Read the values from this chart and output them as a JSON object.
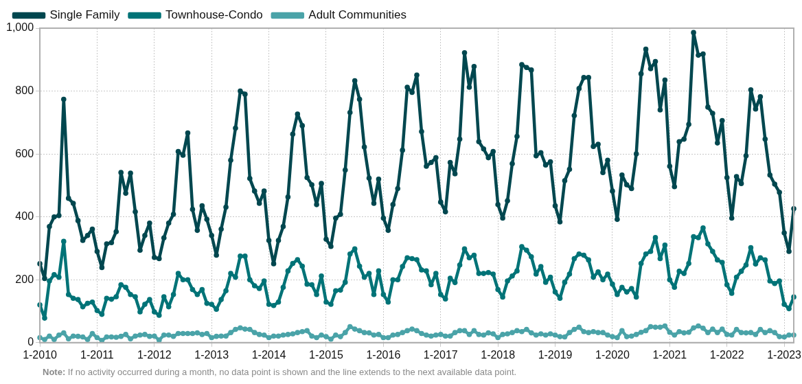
{
  "chart_data": {
    "type": "line",
    "categories": [
      "1-2010",
      null,
      null,
      null,
      null,
      null,
      null,
      null,
      null,
      null,
      null,
      null,
      "1-2011",
      null,
      null,
      null,
      null,
      null,
      null,
      null,
      null,
      null,
      null,
      null,
      "1-2012",
      null,
      null,
      null,
      null,
      null,
      null,
      null,
      null,
      null,
      null,
      null,
      "1-2013",
      null,
      null,
      null,
      null,
      null,
      null,
      null,
      null,
      null,
      null,
      null,
      "1-2014",
      null,
      null,
      null,
      null,
      null,
      null,
      null,
      null,
      null,
      null,
      null,
      "1-2015",
      null,
      null,
      null,
      null,
      null,
      null,
      null,
      null,
      null,
      null,
      null,
      "1-2016",
      null,
      null,
      null,
      null,
      null,
      null,
      null,
      null,
      null,
      null,
      null,
      "1-2017",
      null,
      null,
      null,
      null,
      null,
      null,
      null,
      null,
      null,
      null,
      null,
      "1-2018",
      null,
      null,
      null,
      null,
      null,
      null,
      null,
      null,
      null,
      null,
      null,
      "1-2019",
      null,
      null,
      null,
      null,
      null,
      null,
      null,
      null,
      null,
      null,
      null,
      "1-2020",
      null,
      null,
      null,
      null,
      null,
      null,
      null,
      null,
      null,
      null,
      null,
      "1-2021",
      null,
      null,
      null,
      null,
      null,
      null,
      null,
      null,
      null,
      null,
      null,
      "1-2022",
      null,
      null,
      null,
      null,
      null,
      null,
      null,
      null,
      null,
      null,
      null,
      "1-2023",
      null,
      null
    ],
    "series": [
      {
        "name": "Single Family",
        "color": "#00474f",
        "values": [
          251,
          204,
          369,
          400,
          404,
          774,
          459,
          443,
          388,
          325,
          341,
          361,
          290,
          239,
          314,
          318,
          353,
          541,
          475,
          539,
          416,
          294,
          341,
          380,
          271,
          267,
          333,
          380,
          408,
          608,
          596,
          667,
          424,
          357,
          435,
          392,
          341,
          278,
          361,
          431,
          580,
          682,
          800,
          790,
          522,
          482,
          443,
          482,
          325,
          251,
          325,
          369,
          463,
          663,
          727,
          690,
          525,
          502,
          439,
          506,
          329,
          306,
          396,
          408,
          549,
          732,
          833,
          774,
          622,
          523,
          443,
          520,
          396,
          357,
          439,
          490,
          612,
          812,
          796,
          851,
          671,
          561,
          573,
          588,
          447,
          416,
          573,
          537,
          647,
          922,
          812,
          878,
          639,
          616,
          588,
          608,
          439,
          396,
          451,
          569,
          656,
          884,
          875,
          867,
          594,
          604,
          565,
          575,
          435,
          384,
          515,
          551,
          722,
          808,
          843,
          843,
          624,
          631,
          541,
          580,
          482,
          392,
          533,
          502,
          490,
          600,
          855,
          933,
          871,
          894,
          740,
          835,
          561,
          496,
          639,
          647,
          694,
          986,
          914,
          918,
          749,
          729,
          635,
          706,
          525,
          396,
          528,
          506,
          594,
          804,
          743,
          782,
          647,
          533,
          504,
          478,
          349,
          290,
          426
        ]
      },
      {
        "name": "Townhouse-Condo",
        "color": "#007377",
        "values": [
          120,
          78,
          196,
          216,
          208,
          322,
          153,
          141,
          137,
          114,
          125,
          129,
          102,
          90,
          141,
          138,
          146,
          184,
          176,
          153,
          146,
          98,
          122,
          137,
          98,
          87,
          146,
          114,
          153,
          220,
          200,
          200,
          169,
          153,
          169,
          125,
          122,
          106,
          137,
          165,
          220,
          208,
          275,
          275,
          200,
          181,
          172,
          196,
          122,
          118,
          129,
          176,
          228,
          252,
          264,
          243,
          186,
          184,
          153,
          212,
          129,
          122,
          165,
          167,
          192,
          282,
          298,
          243,
          208,
          220,
          153,
          228,
          153,
          129,
          200,
          200,
          242,
          270,
          267,
          264,
          231,
          228,
          184,
          220,
          153,
          139,
          205,
          191,
          247,
          298,
          270,
          278,
          220,
          220,
          223,
          218,
          169,
          145,
          196,
          212,
          228,
          305,
          294,
          273,
          218,
          242,
          192,
          208,
          161,
          141,
          192,
          218,
          267,
          282,
          278,
          263,
          208,
          225,
          200,
          218,
          186,
          153,
          176,
          161,
          172,
          145,
          252,
          282,
          290,
          334,
          267,
          310,
          200,
          176,
          227,
          220,
          252,
          337,
          334,
          365,
          314,
          290,
          263,
          255,
          184,
          157,
          208,
          227,
          247,
          302,
          250,
          270,
          263,
          196,
          188,
          196,
          122,
          108,
          145
        ]
      },
      {
        "name": "Adult Communities",
        "color": "#4aa3a8",
        "values": [
          16,
          10,
          21,
          10,
          24,
          31,
          12,
          21,
          20,
          18,
          10,
          29,
          16,
          7,
          18,
          18,
          17,
          20,
          26,
          12,
          21,
          24,
          26,
          20,
          21,
          8,
          24,
          24,
          20,
          29,
          29,
          29,
          29,
          31,
          26,
          29,
          16,
          20,
          21,
          21,
          32,
          42,
          47,
          43,
          42,
          32,
          26,
          24,
          16,
          21,
          21,
          24,
          26,
          28,
          32,
          35,
          38,
          21,
          16,
          24,
          19,
          11,
          24,
          19,
          32,
          51,
          43,
          38,
          32,
          31,
          24,
          26,
          16,
          16,
          24,
          26,
          32,
          38,
          43,
          38,
          29,
          24,
          21,
          24,
          26,
          21,
          21,
          32,
          38,
          38,
          26,
          38,
          26,
          24,
          31,
          28,
          16,
          26,
          28,
          32,
          38,
          35,
          42,
          31,
          24,
          28,
          24,
          28,
          24,
          19,
          18,
          32,
          42,
          49,
          35,
          32,
          35,
          32,
          32,
          24,
          19,
          16,
          38,
          19,
          21,
          26,
          33,
          38,
          51,
          49,
          49,
          53,
          33,
          24,
          35,
          31,
          33,
          47,
          53,
          46,
          32,
          43,
          32,
          43,
          26,
          24,
          42,
          32,
          31,
          32,
          26,
          42,
          32,
          38,
          32,
          19,
          18,
          24,
          24
        ]
      }
    ],
    "ylim": [
      0,
      1000
    ],
    "yticks": [
      0,
      200,
      400,
      600,
      800,
      {
        "value": 1000,
        "label": "1,000"
      }
    ],
    "grid": true,
    "legend": "top left",
    "marker": "circle",
    "line_style": "solid",
    "annotations": [
      "Note: If no activity occurred during a month, no data point is shown and the line extends to the next available data point."
    ]
  }
}
